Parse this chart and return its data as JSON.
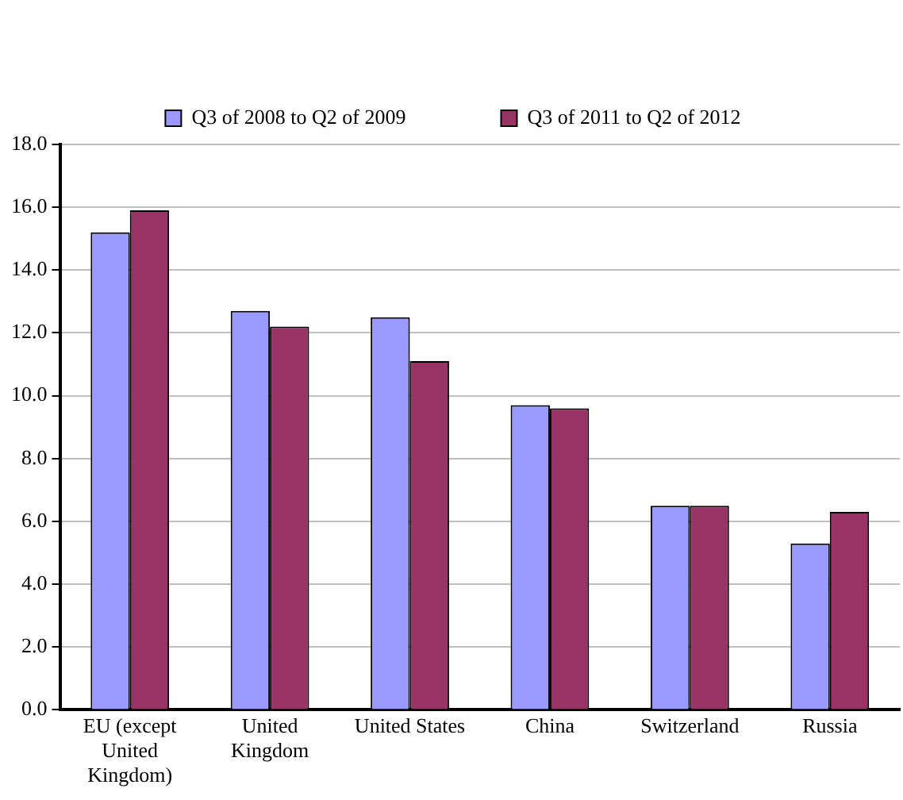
{
  "chart_data": {
    "type": "bar",
    "categories": [
      "EU  (except United Kingdom)",
      "United Kingdom",
      "United States",
      "China",
      "Switzerland",
      "Russia"
    ],
    "series": [
      {
        "name": "Q3 of 2008 to Q2 of 2009",
        "color": "#9999ff",
        "values": [
          15.2,
          12.7,
          12.5,
          9.7,
          6.5,
          5.3
        ]
      },
      {
        "name": "Q3 of 2011 to Q2 of 2012",
        "color": "#993366",
        "values": [
          15.9,
          12.2,
          11.1,
          9.6,
          6.5,
          6.3
        ]
      }
    ],
    "ylim": [
      0,
      18
    ],
    "yticks": [
      {
        "value": 0,
        "label": "0.0"
      },
      {
        "value": 2,
        "label": "2.0"
      },
      {
        "value": 4,
        "label": "4.0"
      },
      {
        "value": 6,
        "label": "6.0"
      },
      {
        "value": 8,
        "label": "8.0"
      },
      {
        "value": 10,
        "label": "10.0"
      },
      {
        "value": 12,
        "label": "12.0"
      },
      {
        "value": 14,
        "label": "14.0"
      },
      {
        "value": 16,
        "label": "16.0"
      },
      {
        "value": 18,
        "label": "18.0"
      }
    ],
    "grid": "y",
    "legend": "top"
  }
}
